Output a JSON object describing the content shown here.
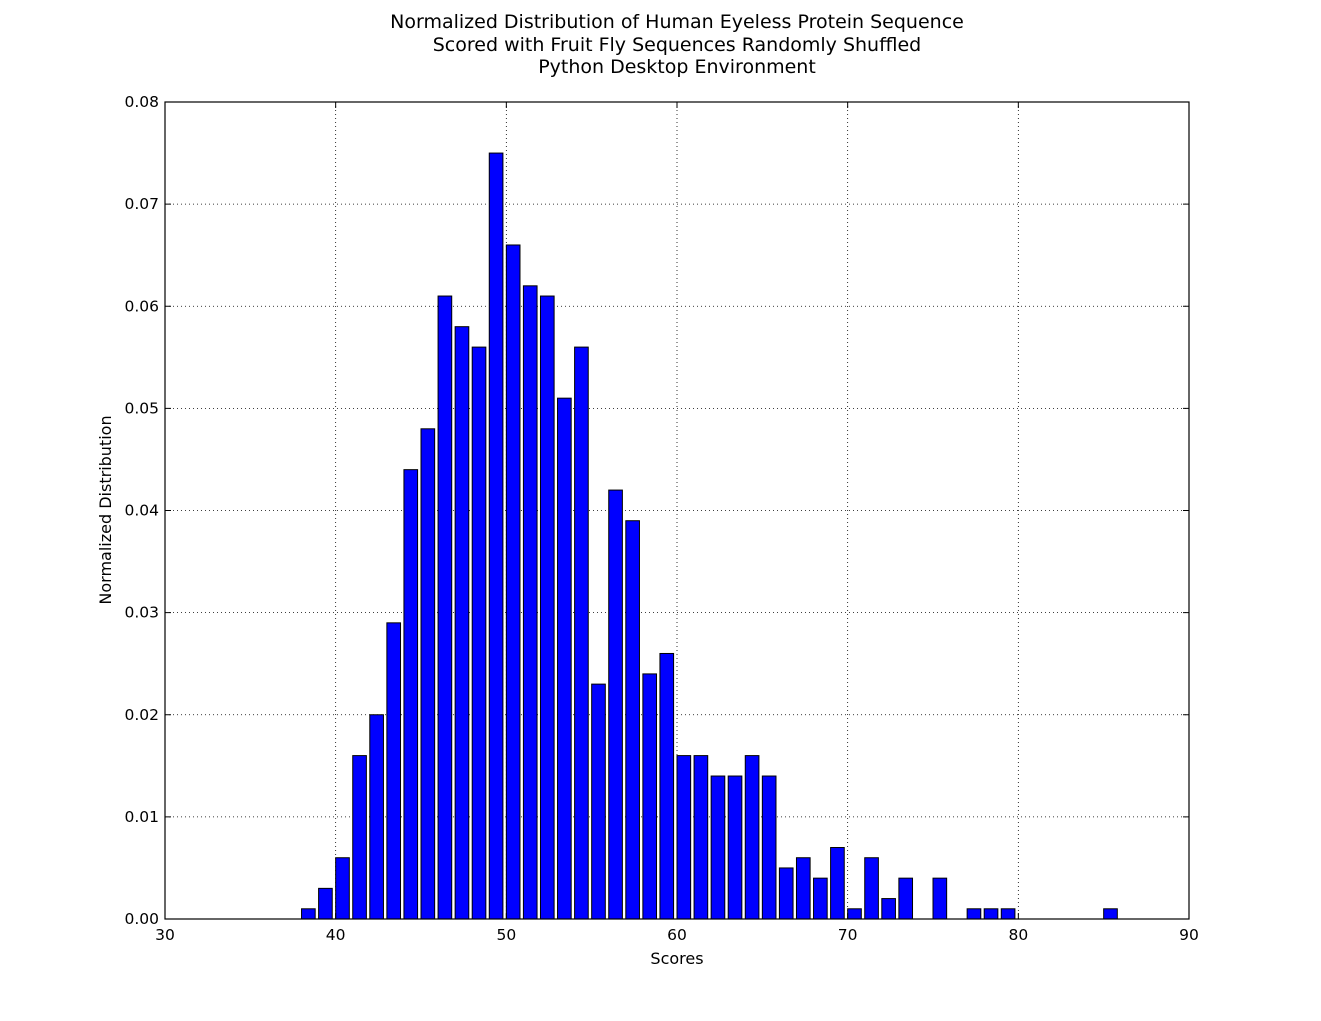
{
  "colors": {
    "bar_fill": "#0000ff",
    "bar_stroke": "#000000",
    "background": "#ffffff",
    "grid": "#000000"
  },
  "chart_data": {
    "type": "bar",
    "title": [
      "Normalized Distribution of Human Eyeless Protein Sequence",
      "Scored with Fruit Fly Sequences Randomly Shuffled",
      "Python Desktop Environment"
    ],
    "xlabel": "Scores",
    "ylabel": "Normalized Distribution",
    "xlim": [
      30,
      90
    ],
    "ylim": [
      0,
      0.08
    ],
    "xticks": [
      30,
      40,
      50,
      60,
      70,
      80,
      90
    ],
    "yticks": [
      0.0,
      0.01,
      0.02,
      0.03,
      0.04,
      0.05,
      0.06,
      0.07,
      0.08
    ],
    "ytick_labels": [
      "0.00",
      "0.01",
      "0.02",
      "0.03",
      "0.04",
      "0.05",
      "0.06",
      "0.07",
      "0.08"
    ],
    "grid": true,
    "bar_width": 0.8,
    "x": [
      38,
      39,
      40,
      41,
      42,
      43,
      44,
      45,
      46,
      47,
      48,
      49,
      50,
      51,
      52,
      53,
      54,
      55,
      56,
      57,
      58,
      59,
      60,
      61,
      62,
      63,
      64,
      65,
      66,
      67,
      68,
      69,
      70,
      71,
      72,
      73,
      75,
      77,
      78,
      79,
      85
    ],
    "values": [
      0.001,
      0.003,
      0.006,
      0.016,
      0.02,
      0.029,
      0.044,
      0.048,
      0.061,
      0.058,
      0.056,
      0.075,
      0.066,
      0.062,
      0.061,
      0.051,
      0.056,
      0.023,
      0.042,
      0.039,
      0.024,
      0.026,
      0.016,
      0.016,
      0.014,
      0.014,
      0.016,
      0.014,
      0.005,
      0.006,
      0.004,
      0.007,
      0.001,
      0.006,
      0.002,
      0.004,
      0.004,
      0.001,
      0.001,
      0.001,
      0.001
    ]
  }
}
